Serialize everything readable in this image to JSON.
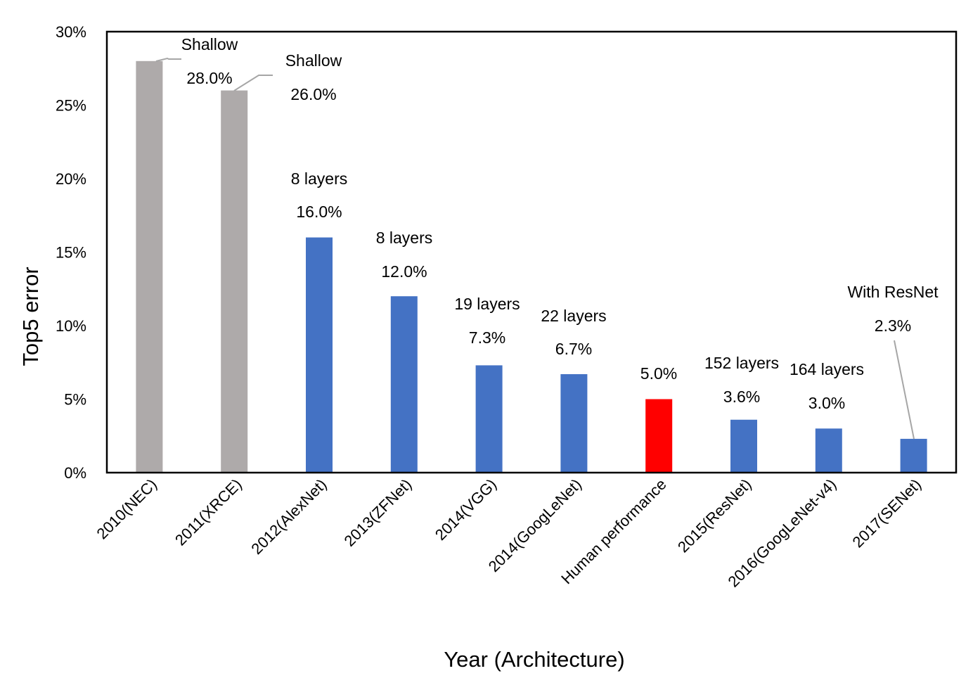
{
  "chart_data": {
    "type": "bar",
    "title": "",
    "xlabel": "Year (Architecture)",
    "ylabel": "Top5 error",
    "ylim": [
      0,
      30
    ],
    "yticks": [
      "0%",
      "5%",
      "10%",
      "15%",
      "20%",
      "25%",
      "30%"
    ],
    "grid": false,
    "legend": "none",
    "categories": [
      "2010(NEC)",
      "2011(XRCE)",
      "2012(AlexNet)",
      "2013(ZFNet)",
      "2014(VGG)",
      "2014(GoogLeNet)",
      "Human performance",
      "2015(ResNet)",
      "2016(GoogLeNet-v4)",
      "2017(SENet)"
    ],
    "values": [
      28.0,
      26.0,
      16.0,
      12.0,
      7.3,
      6.7,
      5.0,
      3.6,
      3.0,
      2.3
    ],
    "value_labels": [
      "28.0%",
      "26.0%",
      "16.0%",
      "12.0%",
      "7.3%",
      "6.7%",
      "5.0%",
      "3.6%",
      "3.0%",
      "2.3%"
    ],
    "annotations": [
      "Shallow",
      "Shallow",
      "8 layers",
      "8 layers",
      "19 layers",
      "22 layers",
      "",
      "152 layers",
      "164 layers",
      "With ResNet"
    ],
    "colors": [
      "#aeaaaa",
      "#aeaaaa",
      "#4472c4",
      "#4472c4",
      "#4472c4",
      "#4472c4",
      "#ff0000",
      "#4472c4",
      "#4472c4",
      "#4472c4"
    ]
  }
}
